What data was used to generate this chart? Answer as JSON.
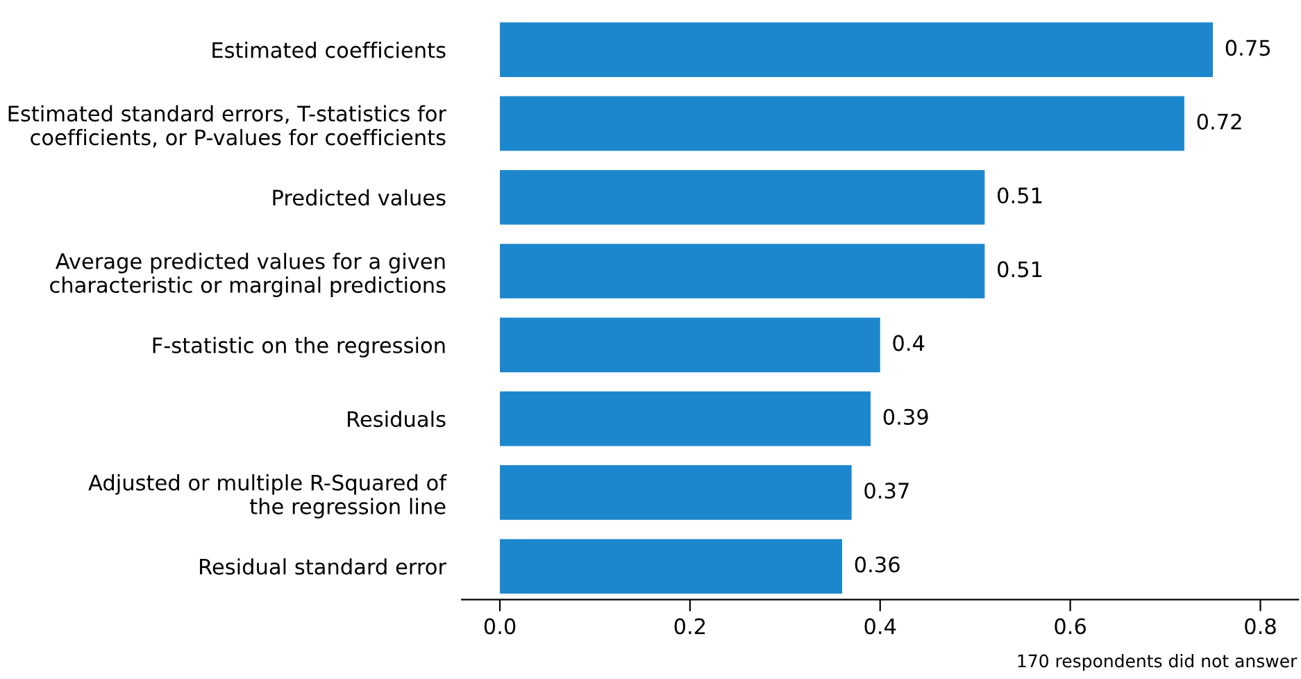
{
  "chart_data": {
    "type": "bar",
    "orientation": "horizontal",
    "categories": [
      "Estimated coefficients",
      "Estimated standard errors, T-statistics for\ncoefficients, or P-values for coefficients",
      "Predicted values",
      "Average predicted values for a given\ncharacteristic or marginal predictions",
      "F-statistic on the regression",
      "Residuals",
      "Adjusted or multiple R-Squared of\nthe regression line",
      "Residual standard error"
    ],
    "values": [
      0.75,
      0.72,
      0.51,
      0.51,
      0.4,
      0.39,
      0.37,
      0.36
    ],
    "color": "#1d87cd",
    "data_labels": true,
    "xlim": [
      -0.04,
      0.84
    ],
    "xticks": [
      {
        "value": 0,
        "label": "0.0"
      },
      {
        "value": 0.2,
        "label": "0.2"
      },
      {
        "value": 0.4,
        "label": "0.4"
      },
      {
        "value": 0.6,
        "label": "0.6"
      },
      {
        "value": 0.8,
        "label": "0.8"
      }
    ],
    "grid": false,
    "annotations": [
      "170 respondents did not answer"
    ]
  }
}
